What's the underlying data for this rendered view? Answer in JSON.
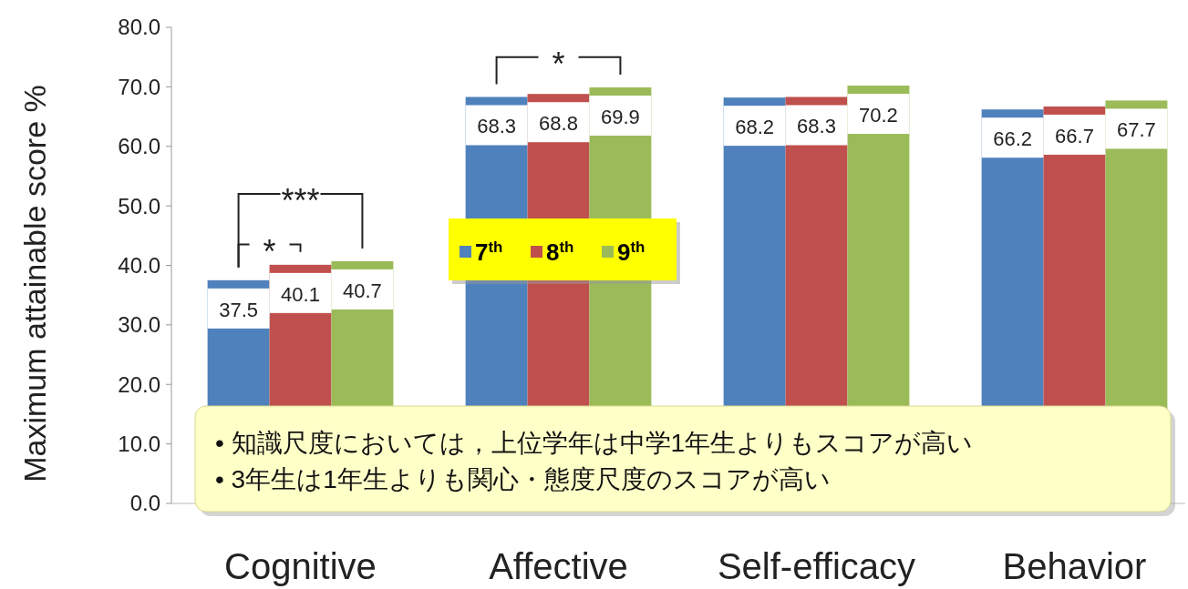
{
  "chart_data": {
    "type": "bar",
    "ylabel": "Maximum attainable score  %",
    "categories": [
      "Cognitive",
      "Affective",
      "Self-efficacy",
      "Behavior"
    ],
    "series": [
      {
        "name": "7$^{th}$",
        "color": "#4f81bd",
        "values": [
          37.5,
          68.3,
          68.2,
          66.2
        ]
      },
      {
        "name": "8$^{th}$",
        "color": "#c0504d",
        "values": [
          40.1,
          68.8,
          68.3,
          66.7
        ]
      },
      {
        "name": "9$^{th}$",
        "color": "#9bbb59",
        "values": [
          40.7,
          69.9,
          70.2,
          67.7
        ]
      }
    ],
    "ylim": [
      0,
      80
    ],
    "yticks": [
      {
        "value": 0,
        "label": "0.0"
      },
      {
        "value": 10,
        "label": "10.0"
      },
      {
        "value": 20,
        "label": "20.0"
      },
      {
        "value": 30,
        "label": "30.0"
      },
      {
        "value": 40,
        "label": "40.0"
      },
      {
        "value": 50,
        "label": "50.0"
      },
      {
        "value": 60,
        "label": "60.0"
      },
      {
        "value": 70,
        "label": "70.0"
      },
      {
        "value": 80,
        "label": "80.0"
      }
    ],
    "data_labels": true,
    "legend": "center",
    "grid": false,
    "annotations": [
      "***",
      "*",
      "*",
      "• 知識尺度においては，上位学年は中学1年生よりもスコアが高い",
      "• 3年生は1年生よりも関心・態度尺度のスコアが高い"
    ]
  }
}
